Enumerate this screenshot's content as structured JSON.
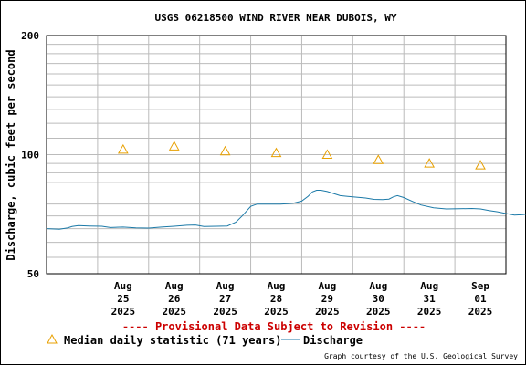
{
  "colors": {
    "median": "#e8a000",
    "discharge": "#1c7aa8",
    "provisional": "#cc0000",
    "grid": "#bbbbbb"
  },
  "legend": {
    "median_icon": "triangle-icon",
    "discharge_icon": "line-icon"
  },
  "chart_data": {
    "type": "line",
    "title": "USGS 06218500 WIND RIVER NEAR DUBOIS, WY",
    "ylabel": "Discharge, cubic feet per second",
    "y_scale": "log",
    "ylim": [
      50,
      200
    ],
    "y_ticks": [
      "50",
      "100",
      "200"
    ],
    "xlim": [
      "2025-08-24",
      "2025-09-02"
    ],
    "x_ticks": [
      {
        "date": "2025-08-25",
        "label": [
          "Aug",
          "25",
          "2025"
        ]
      },
      {
        "date": "2025-08-26",
        "label": [
          "Aug",
          "26",
          "2025"
        ]
      },
      {
        "date": "2025-08-27",
        "label": [
          "Aug",
          "27",
          "2025"
        ]
      },
      {
        "date": "2025-08-28",
        "label": [
          "Aug",
          "28",
          "2025"
        ]
      },
      {
        "date": "2025-08-29",
        "label": [
          "Aug",
          "29",
          "2025"
        ]
      },
      {
        "date": "2025-08-30",
        "label": [
          "Aug",
          "30",
          "2025"
        ]
      },
      {
        "date": "2025-08-31",
        "label": [
          "Aug",
          "31",
          "2025"
        ]
      },
      {
        "date": "2025-09-01",
        "label": [
          "Sep",
          "01",
          "2025"
        ]
      }
    ],
    "grid": true,
    "series": [
      {
        "name": "Median daily statistic (71 years)",
        "kind": "markers",
        "marker": "triangle",
        "points": [
          {
            "x": "2025-08-25 12:00",
            "y": 103
          },
          {
            "x": "2025-08-26 12:00",
            "y": 105
          },
          {
            "x": "2025-08-27 12:00",
            "y": 102
          },
          {
            "x": "2025-08-28 12:00",
            "y": 101
          },
          {
            "x": "2025-08-29 12:00",
            "y": 100
          },
          {
            "x": "2025-08-30 12:00",
            "y": 97
          },
          {
            "x": "2025-08-31 12:00",
            "y": 95
          },
          {
            "x": "2025-09-01 12:00",
            "y": 94
          }
        ]
      },
      {
        "name": "Discharge",
        "kind": "line",
        "points": [
          {
            "x": "2025-08-24 00:00",
            "y": 65.0
          },
          {
            "x": "2025-08-24 06:00",
            "y": 64.8
          },
          {
            "x": "2025-08-24 10:00",
            "y": 65.3
          },
          {
            "x": "2025-08-24 12:00",
            "y": 65.8
          },
          {
            "x": "2025-08-24 15:00",
            "y": 66.2
          },
          {
            "x": "2025-08-24 20:00",
            "y": 66.0
          },
          {
            "x": "2025-08-25 02:00",
            "y": 65.9
          },
          {
            "x": "2025-08-25 06:00",
            "y": 65.4
          },
          {
            "x": "2025-08-25 12:00",
            "y": 65.6
          },
          {
            "x": "2025-08-25 18:00",
            "y": 65.3
          },
          {
            "x": "2025-08-26 00:00",
            "y": 65.2
          },
          {
            "x": "2025-08-26 06:00",
            "y": 65.6
          },
          {
            "x": "2025-08-26 12:00",
            "y": 65.9
          },
          {
            "x": "2025-08-26 18:00",
            "y": 66.3
          },
          {
            "x": "2025-08-26 22:00",
            "y": 66.4
          },
          {
            "x": "2025-08-27 02:00",
            "y": 65.8
          },
          {
            "x": "2025-08-27 08:00",
            "y": 65.9
          },
          {
            "x": "2025-08-27 13:00",
            "y": 66.0
          },
          {
            "x": "2025-08-27 17:00",
            "y": 67.5
          },
          {
            "x": "2025-08-27 20:00",
            "y": 70.0
          },
          {
            "x": "2025-08-28 00:00",
            "y": 74.0
          },
          {
            "x": "2025-08-28 03:00",
            "y": 75.0
          },
          {
            "x": "2025-08-28 08:00",
            "y": 75.0
          },
          {
            "x": "2025-08-28 14:00",
            "y": 75.0
          },
          {
            "x": "2025-08-28 20:00",
            "y": 75.4
          },
          {
            "x": "2025-08-29 00:00",
            "y": 76.3
          },
          {
            "x": "2025-08-29 03:00",
            "y": 78.5
          },
          {
            "x": "2025-08-29 05:00",
            "y": 80.5
          },
          {
            "x": "2025-08-29 07:00",
            "y": 81.3
          },
          {
            "x": "2025-08-29 09:00",
            "y": 81.3
          },
          {
            "x": "2025-08-29 12:00",
            "y": 80.7
          },
          {
            "x": "2025-08-29 18:00",
            "y": 78.8
          },
          {
            "x": "2025-08-30 00:00",
            "y": 78.2
          },
          {
            "x": "2025-08-30 06:00",
            "y": 77.7
          },
          {
            "x": "2025-08-30 10:00",
            "y": 77.1
          },
          {
            "x": "2025-08-30 14:00",
            "y": 77.0
          },
          {
            "x": "2025-08-30 17:00",
            "y": 77.2
          },
          {
            "x": "2025-08-30 19:00",
            "y": 78.2
          },
          {
            "x": "2025-08-30 21:00",
            "y": 78.8
          },
          {
            "x": "2025-08-31 00:00",
            "y": 77.9
          },
          {
            "x": "2025-08-31 04:00",
            "y": 76.2
          },
          {
            "x": "2025-08-31 08:00",
            "y": 74.6
          },
          {
            "x": "2025-08-31 14:00",
            "y": 73.4
          },
          {
            "x": "2025-08-31 20:00",
            "y": 72.9
          },
          {
            "x": "2025-09-01 02:00",
            "y": 73.0
          },
          {
            "x": "2025-09-01 08:00",
            "y": 73.1
          },
          {
            "x": "2025-09-01 12:00",
            "y": 72.9
          },
          {
            "x": "2025-09-01 16:00",
            "y": 72.2
          },
          {
            "x": "2025-09-01 20:00",
            "y": 71.7
          },
          {
            "x": "2025-09-02 00:00",
            "y": 71.0
          },
          {
            "x": "2025-09-02 04:00",
            "y": 70.3
          },
          {
            "x": "2025-09-02 08:00",
            "y": 70.5
          },
          {
            "x": "2025-09-02 12:00",
            "y": 71.1
          },
          {
            "x": "2025-09-02 18:00",
            "y": 71.3
          },
          {
            "x": "2025-09-03 00:00",
            "y": 71.2
          },
          {
            "x": "2025-09-03 04:00",
            "y": 71.0
          },
          {
            "x": "2025-09-03 08:00",
            "y": 70.7
          }
        ]
      }
    ],
    "provisional_note": "---- Provisional Data Subject to Revision ----",
    "legend_median": "Median daily statistic (71 years)",
    "legend_discharge": "Discharge",
    "credit": "Graph courtesy of the U.S. Geological Survey"
  }
}
